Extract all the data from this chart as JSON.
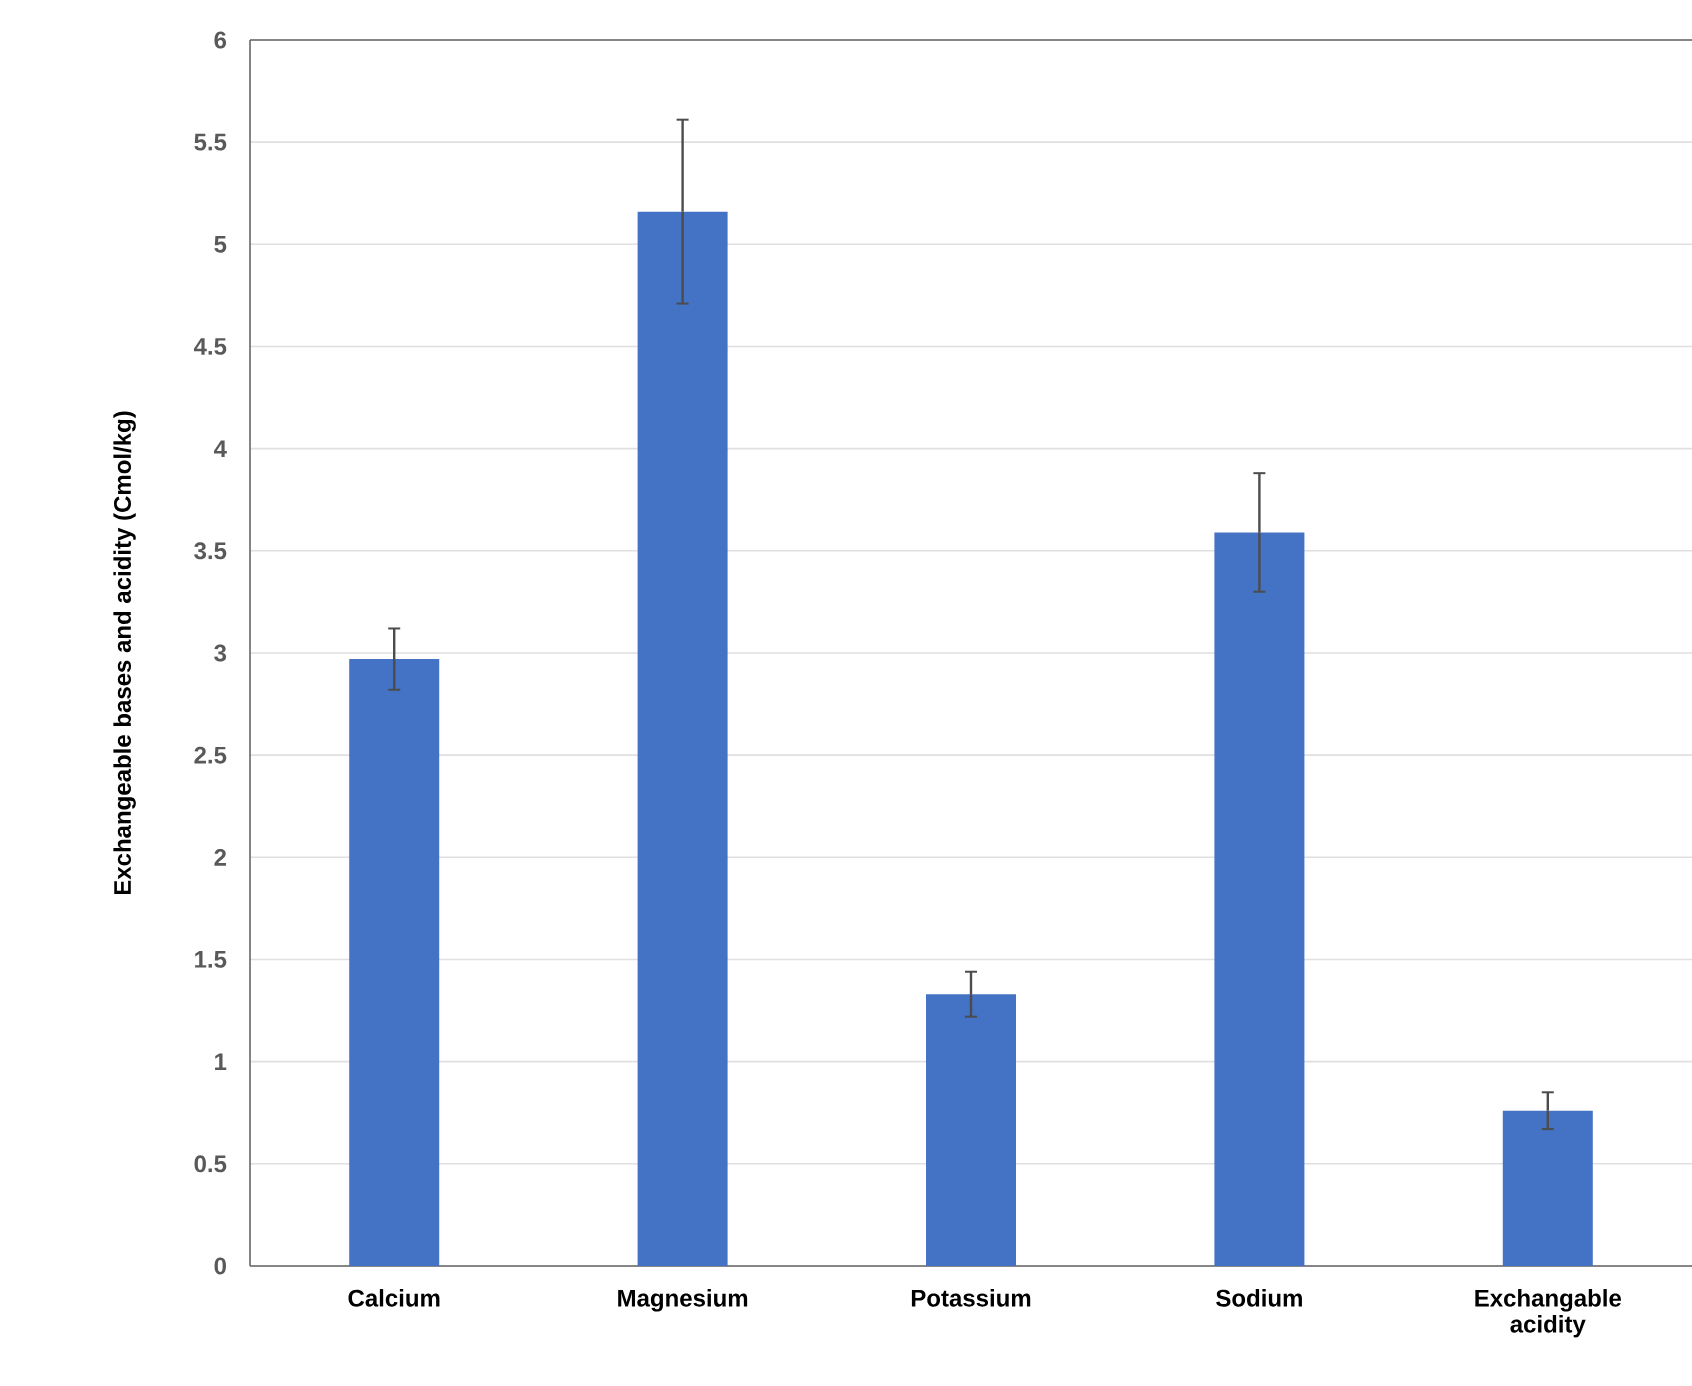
{
  "chart_data": {
    "type": "bar",
    "ylabel": "Exchangeable bases and acidity (Cmol/kg)",
    "categories": [
      "Calcium",
      "Magnesium",
      "Potassium",
      "Sodium",
      "Exchangable acidity"
    ],
    "values": [
      2.97,
      5.16,
      1.33,
      3.59,
      0.76
    ],
    "errors": [
      0.15,
      0.45,
      0.11,
      0.29,
      0.09
    ],
    "color": "#4472c4",
    "ylim": [
      0,
      6
    ],
    "yticks": [
      0,
      0.5,
      1,
      1.5,
      2,
      2.5,
      3,
      3.5,
      4,
      4.5,
      5,
      5.5,
      6
    ],
    "grid": "y"
  }
}
